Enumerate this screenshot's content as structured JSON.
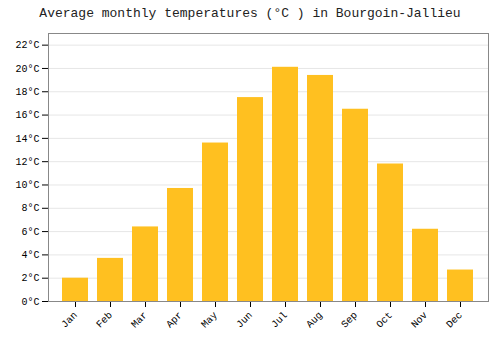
{
  "chart_data": {
    "type": "bar",
    "title": "Average monthly temperatures (°C ) in Bourgoin-Jallieu",
    "categories": [
      "Jan",
      "Feb",
      "Mar",
      "Apr",
      "May",
      "Jun",
      "Jul",
      "Aug",
      "Sep",
      "Oct",
      "Nov",
      "Dec"
    ],
    "values": [
      2.0,
      3.7,
      6.4,
      9.7,
      13.6,
      17.5,
      20.1,
      19.4,
      16.5,
      11.8,
      6.2,
      2.7
    ],
    "color": "#FFC020",
    "ylim": [
      0,
      23
    ],
    "yticks": [
      {
        "value": 0,
        "label": "0°C"
      },
      {
        "value": 2,
        "label": "2°C"
      },
      {
        "value": 4,
        "label": "4°C"
      },
      {
        "value": 6,
        "label": "6°C"
      },
      {
        "value": 8,
        "label": "8°C"
      },
      {
        "value": 10,
        "label": "10°C"
      },
      {
        "value": 12,
        "label": "12°C"
      },
      {
        "value": 14,
        "label": "14°C"
      },
      {
        "value": 16,
        "label": "16°C"
      },
      {
        "value": 18,
        "label": "18°C"
      },
      {
        "value": 20,
        "label": "20°C"
      },
      {
        "value": 22,
        "label": "22°C"
      }
    ],
    "grid": true
  }
}
